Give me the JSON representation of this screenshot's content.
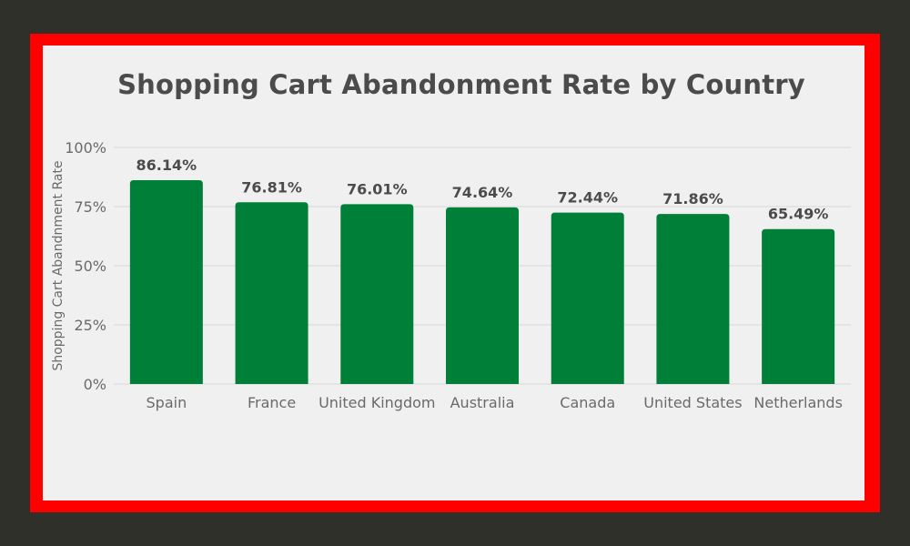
{
  "colors": {
    "background": "#30302b",
    "frame": "#ff0000",
    "panel": "#f0f0f0",
    "bar": "#007f38",
    "gridline": "#d8d8d8"
  },
  "chart_data": {
    "type": "bar",
    "title": "Shopping Cart Abandonment Rate by Country",
    "xlabel": "",
    "ylabel": "Shopping Cart Abandnment Rate",
    "categories": [
      "Spain",
      "France",
      "United Kingdom",
      "Australia",
      "Canada",
      "United States",
      "Netherlands"
    ],
    "values": [
      86.14,
      76.81,
      76.01,
      74.64,
      72.44,
      71.86,
      65.49
    ],
    "value_labels": [
      "86.14%",
      "76.81%",
      "76.01%",
      "74.64%",
      "72.44%",
      "71.86%",
      "65.49%"
    ],
    "ylim": [
      0,
      100
    ],
    "yticks": [
      0,
      25,
      50,
      75,
      100
    ],
    "ytick_labels": [
      "0%",
      "25%",
      "50%",
      "75%",
      "100%"
    ],
    "grid": true,
    "legend": "none"
  }
}
